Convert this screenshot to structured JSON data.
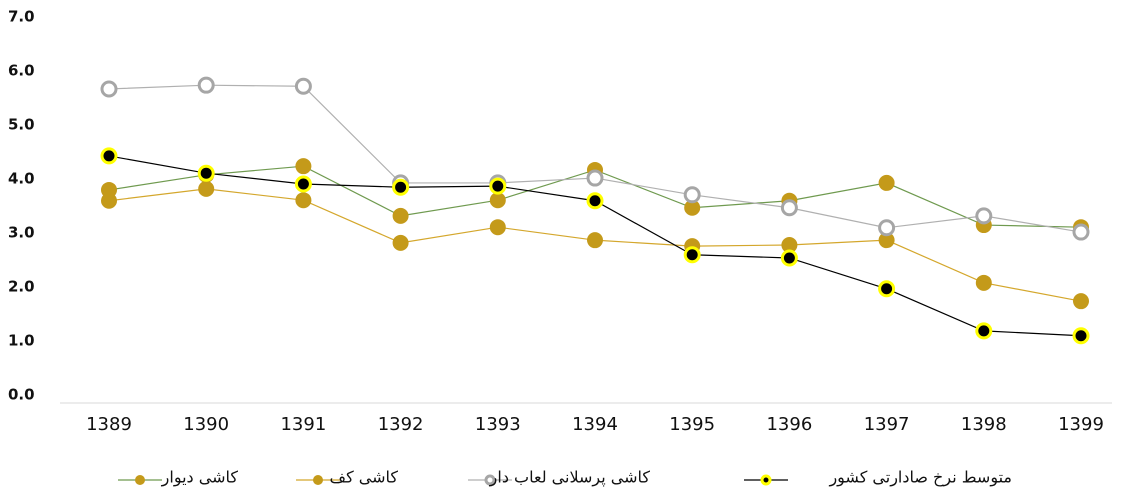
{
  "chart_data": {
    "type": "line",
    "categories": [
      "1389",
      "1390",
      "1391",
      "1392",
      "1393",
      "1394",
      "1395",
      "1396",
      "1397",
      "1398",
      "1399"
    ],
    "series": [
      {
        "name": "کاشی دیوار",
        "color": "#6f9a4f",
        "marker_color": "#c49a1a",
        "marker": "filled",
        "values": [
          3.89,
          4.17,
          4.33,
          3.41,
          3.7,
          4.26,
          3.56,
          3.69,
          4.02,
          3.24,
          3.2
        ]
      },
      {
        "name": "کاشی کف",
        "color": "#d4a72c",
        "marker_color": "#c49a1a",
        "marker": "filled",
        "values": [
          3.69,
          3.91,
          3.7,
          2.91,
          3.2,
          2.96,
          2.85,
          2.87,
          2.96,
          2.17,
          1.83
        ]
      },
      {
        "name": "کاشی پرسلانی لعاب دار",
        "color": "#b0b0b0",
        "marker_color": "#a6a6a6",
        "marker": "hollow",
        "values": [
          5.76,
          5.83,
          5.81,
          4.02,
          4.02,
          4.11,
          3.8,
          3.56,
          3.19,
          3.41,
          3.11
        ]
      },
      {
        "name": "متوسط نرخ صادارتی کشور",
        "color": "#000000",
        "marker_color": "#ffff00",
        "marker": "ringed",
        "values": [
          4.52,
          4.2,
          4.0,
          3.94,
          3.96,
          3.69,
          2.69,
          2.63,
          2.06,
          1.28,
          1.19
        ]
      }
    ],
    "ylim": [
      0,
      7
    ],
    "yticks": [
      {
        "value": 0,
        "label": "0.0"
      },
      {
        "value": 1,
        "label": "1.0"
      },
      {
        "value": 2,
        "label": "2.0"
      },
      {
        "value": 3,
        "label": "3.0"
      },
      {
        "value": 4,
        "label": "4.0"
      },
      {
        "value": 5,
        "label": "5.0"
      },
      {
        "value": 6,
        "label": "6.0"
      },
      {
        "value": 7,
        "label": "7.0"
      }
    ],
    "grid": false,
    "legend": "bottom"
  }
}
